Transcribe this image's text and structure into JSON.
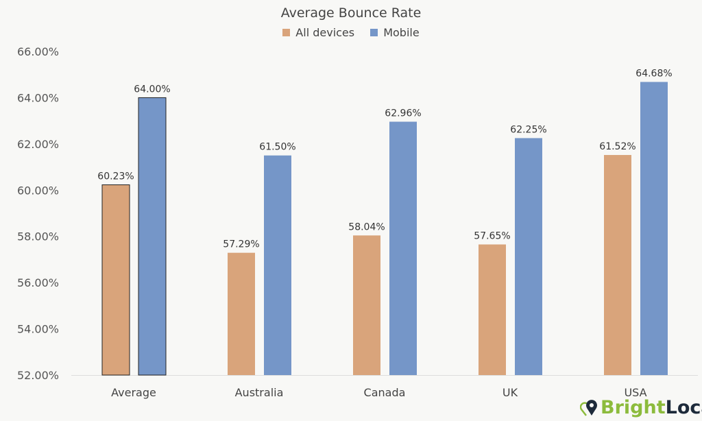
{
  "chart_data": {
    "type": "bar",
    "title": "Average Bounce Rate",
    "categories": [
      "Average",
      "Australia",
      "Canada",
      "UK",
      "USA"
    ],
    "series": [
      {
        "name": "All devices",
        "color": "#d9a47b",
        "values": [
          60.23,
          57.29,
          58.04,
          57.65,
          61.52
        ],
        "labels": [
          "60.23%",
          "57.29%",
          "58.04%",
          "57.65%",
          "61.52%"
        ]
      },
      {
        "name": "Mobile",
        "color": "#7596c8",
        "values": [
          64.0,
          61.5,
          62.96,
          62.25,
          64.68
        ],
        "labels": [
          "64.00%",
          "61.50%",
          "62.96%",
          "62.25%",
          "64.68%"
        ]
      }
    ],
    "ylim": [
      52,
      66
    ],
    "yticks": [
      "52.00%",
      "54.00%",
      "56.00%",
      "58.00%",
      "60.00%",
      "62.00%",
      "64.00%",
      "66.00%"
    ],
    "legend": "top",
    "grid": false
  },
  "logo": {
    "part1": "Bright",
    "part2": "Local"
  }
}
